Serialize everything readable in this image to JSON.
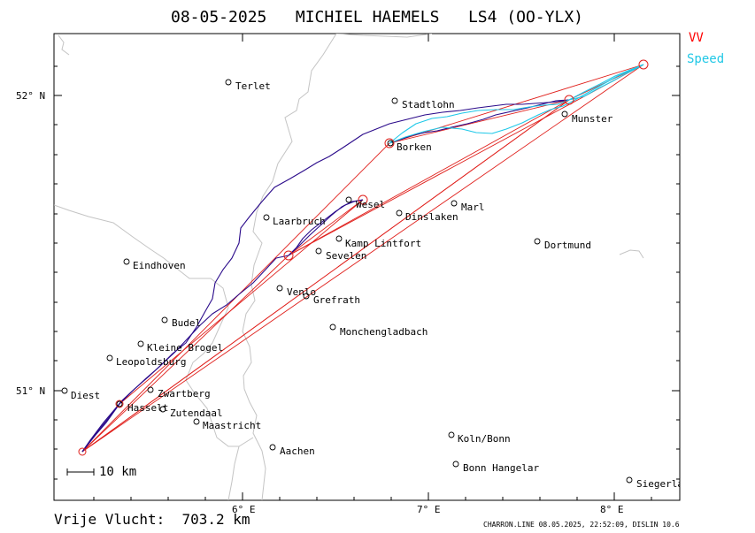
{
  "title": "08-05-2025   MICHIEL HAEMELS   LS4 (OO-YLX)",
  "legend": [
    {
      "label": "VV",
      "color": "#ff0000"
    },
    {
      "label": "Speed",
      "color": "#22c8e6"
    }
  ],
  "colors": {
    "task": "#e0201c",
    "track": "#2a0a8a",
    "speed": "#1ec8e8",
    "border": "#c0c0c0"
  },
  "axes": {
    "lat_labels": [
      "52° N",
      "51° N"
    ],
    "lon_labels": [
      "6° E",
      "7° E",
      "8° E"
    ]
  },
  "scale_label": "10 km",
  "distance": "Vrije Vlucht:  703.2 km",
  "footer": "CHARRON.LINE 08.05.2025, 22:52:09, DISLIN 10.6",
  "places": [
    {
      "name": "Terlet"
    },
    {
      "name": "Stadtlohn"
    },
    {
      "name": "Munster"
    },
    {
      "name": "Borken"
    },
    {
      "name": "Wesel"
    },
    {
      "name": "Marl"
    },
    {
      "name": "Dinslaken"
    },
    {
      "name": "Laarbruch"
    },
    {
      "name": "Kamp Lintfort"
    },
    {
      "name": "Dortmund"
    },
    {
      "name": "Sevelen"
    },
    {
      "name": "Eindhoven"
    },
    {
      "name": "Venlo"
    },
    {
      "name": "Grefrath"
    },
    {
      "name": "Budel"
    },
    {
      "name": "Monchengladbach"
    },
    {
      "name": "Kleine Brogel"
    },
    {
      "name": "Leopoldsburg"
    },
    {
      "name": "Diest"
    },
    {
      "name": "Zwartberg"
    },
    {
      "name": "Hasselt"
    },
    {
      "name": "Zutendaal"
    },
    {
      "name": "Maastricht"
    },
    {
      "name": "Koln/Bonn"
    },
    {
      "name": "Aachen"
    },
    {
      "name": "Bonn Hangelar"
    },
    {
      "name": "Siegerlan"
    }
  ]
}
